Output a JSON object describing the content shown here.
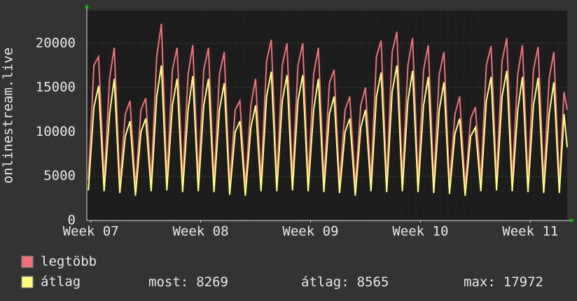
{
  "chart_data": {
    "type": "line",
    "ylabel": "onlinestream.live",
    "x": [
      0.1,
      0.45,
      0.75,
      1.1,
      1.45,
      1.75,
      2.1,
      2.45,
      2.75,
      3.1,
      3.45,
      3.75,
      4.1,
      4.45,
      4.75,
      5.1,
      5.45,
      5.75,
      6.1,
      6.45,
      6.75,
      7.1,
      7.45,
      7.75,
      8.1,
      8.45,
      8.75,
      9.1,
      9.45,
      9.75,
      10.1,
      10.45,
      10.75,
      11.1,
      11.45,
      11.75,
      12.1,
      12.45,
      12.75,
      13.1,
      13.45,
      13.75,
      14.1,
      14.45,
      14.75,
      15.1,
      15.45,
      15.75,
      16.1,
      16.45,
      16.75,
      17.1,
      17.45,
      17.75,
      18.1,
      18.45,
      18.75,
      19.1,
      19.45,
      19.75,
      20.1,
      20.45,
      20.75,
      21.1,
      21.45,
      21.75,
      22.1,
      22.45,
      22.75,
      23.1,
      23.45,
      23.75,
      24.1,
      24.45,
      24.75,
      25.1,
      25.45,
      25.75,
      26.1,
      26.45,
      26.75,
      27.1,
      27.45,
      27.75,
      28.1,
      28.45,
      28.75,
      29.1,
      29.45,
      29.75,
      30.1,
      30.4,
      30.6
    ],
    "series": [
      {
        "name": "legtöbb",
        "color": "#f07078",
        "values": [
          4600,
          17500,
          18500,
          4500,
          16000,
          19500,
          4200,
          12000,
          13500,
          3800,
          12500,
          13800,
          4500,
          18500,
          22200,
          4600,
          17000,
          19500,
          4400,
          16500,
          19800,
          4500,
          17000,
          19500,
          4300,
          16500,
          19000,
          4000,
          12500,
          13500,
          3900,
          13000,
          16000,
          4500,
          18000,
          20400,
          4500,
          17500,
          20000,
          4600,
          17500,
          20000,
          4500,
          16500,
          19500,
          4400,
          15500,
          17000,
          4200,
          12500,
          14000,
          3900,
          13000,
          15000,
          4500,
          18500,
          20300,
          4400,
          19000,
          21300,
          4500,
          17500,
          20600,
          4400,
          17000,
          19800,
          4300,
          16500,
          19000,
          4100,
          12000,
          14000,
          3800,
          11500,
          12800,
          4500,
          17500,
          19700,
          4600,
          18000,
          20600,
          4500,
          16500,
          19800,
          4400,
          17000,
          19600,
          4300,
          16000,
          19000,
          4200,
          14500,
          12500
        ]
      },
      {
        "name": "átlag",
        "color": "#ffff80",
        "values": [
          3400,
          12800,
          15200,
          3300,
          12000,
          16000,
          3100,
          9500,
          11200,
          2800,
          10000,
          11500,
          3300,
          14000,
          17500,
          3400,
          13000,
          16000,
          3200,
          12500,
          16300,
          3300,
          13000,
          16000,
          3200,
          12500,
          15500,
          2900,
          10000,
          11200,
          2800,
          10500,
          13000,
          3300,
          14000,
          16800,
          3300,
          13500,
          16400,
          3400,
          13500,
          16400,
          3300,
          12500,
          16000,
          3200,
          12000,
          14000,
          3100,
          10000,
          11500,
          2800,
          10500,
          12500,
          3300,
          14000,
          16700,
          3200,
          14500,
          17500,
          3300,
          13500,
          16900,
          3200,
          13000,
          16200,
          3100,
          12500,
          15600,
          3000,
          9800,
          11500,
          2800,
          9500,
          10500,
          3300,
          13500,
          16200,
          3400,
          14000,
          16900,
          3300,
          12500,
          16200,
          3200,
          13000,
          16100,
          3100,
          12000,
          15600,
          3100,
          12000,
          8269
        ]
      }
    ],
    "xlim": [
      0,
      30.6
    ],
    "xticks": [
      {
        "value": 0.25,
        "label": "Week 07"
      },
      {
        "value": 7.25,
        "label": "Week 08"
      },
      {
        "value": 14.25,
        "label": "Week 09"
      },
      {
        "value": 21.25,
        "label": "Week 10"
      },
      {
        "value": 28.25,
        "label": "Week 11"
      }
    ],
    "ylim": [
      0,
      23700
    ],
    "yticks": [
      0,
      5000,
      10000,
      15000,
      20000
    ],
    "grid": true,
    "stats": [
      {
        "label": "most:",
        "value": 8269
      },
      {
        "label": "átlag:",
        "value": 8565
      },
      {
        "label": "max:",
        "value": 17972
      }
    ]
  }
}
